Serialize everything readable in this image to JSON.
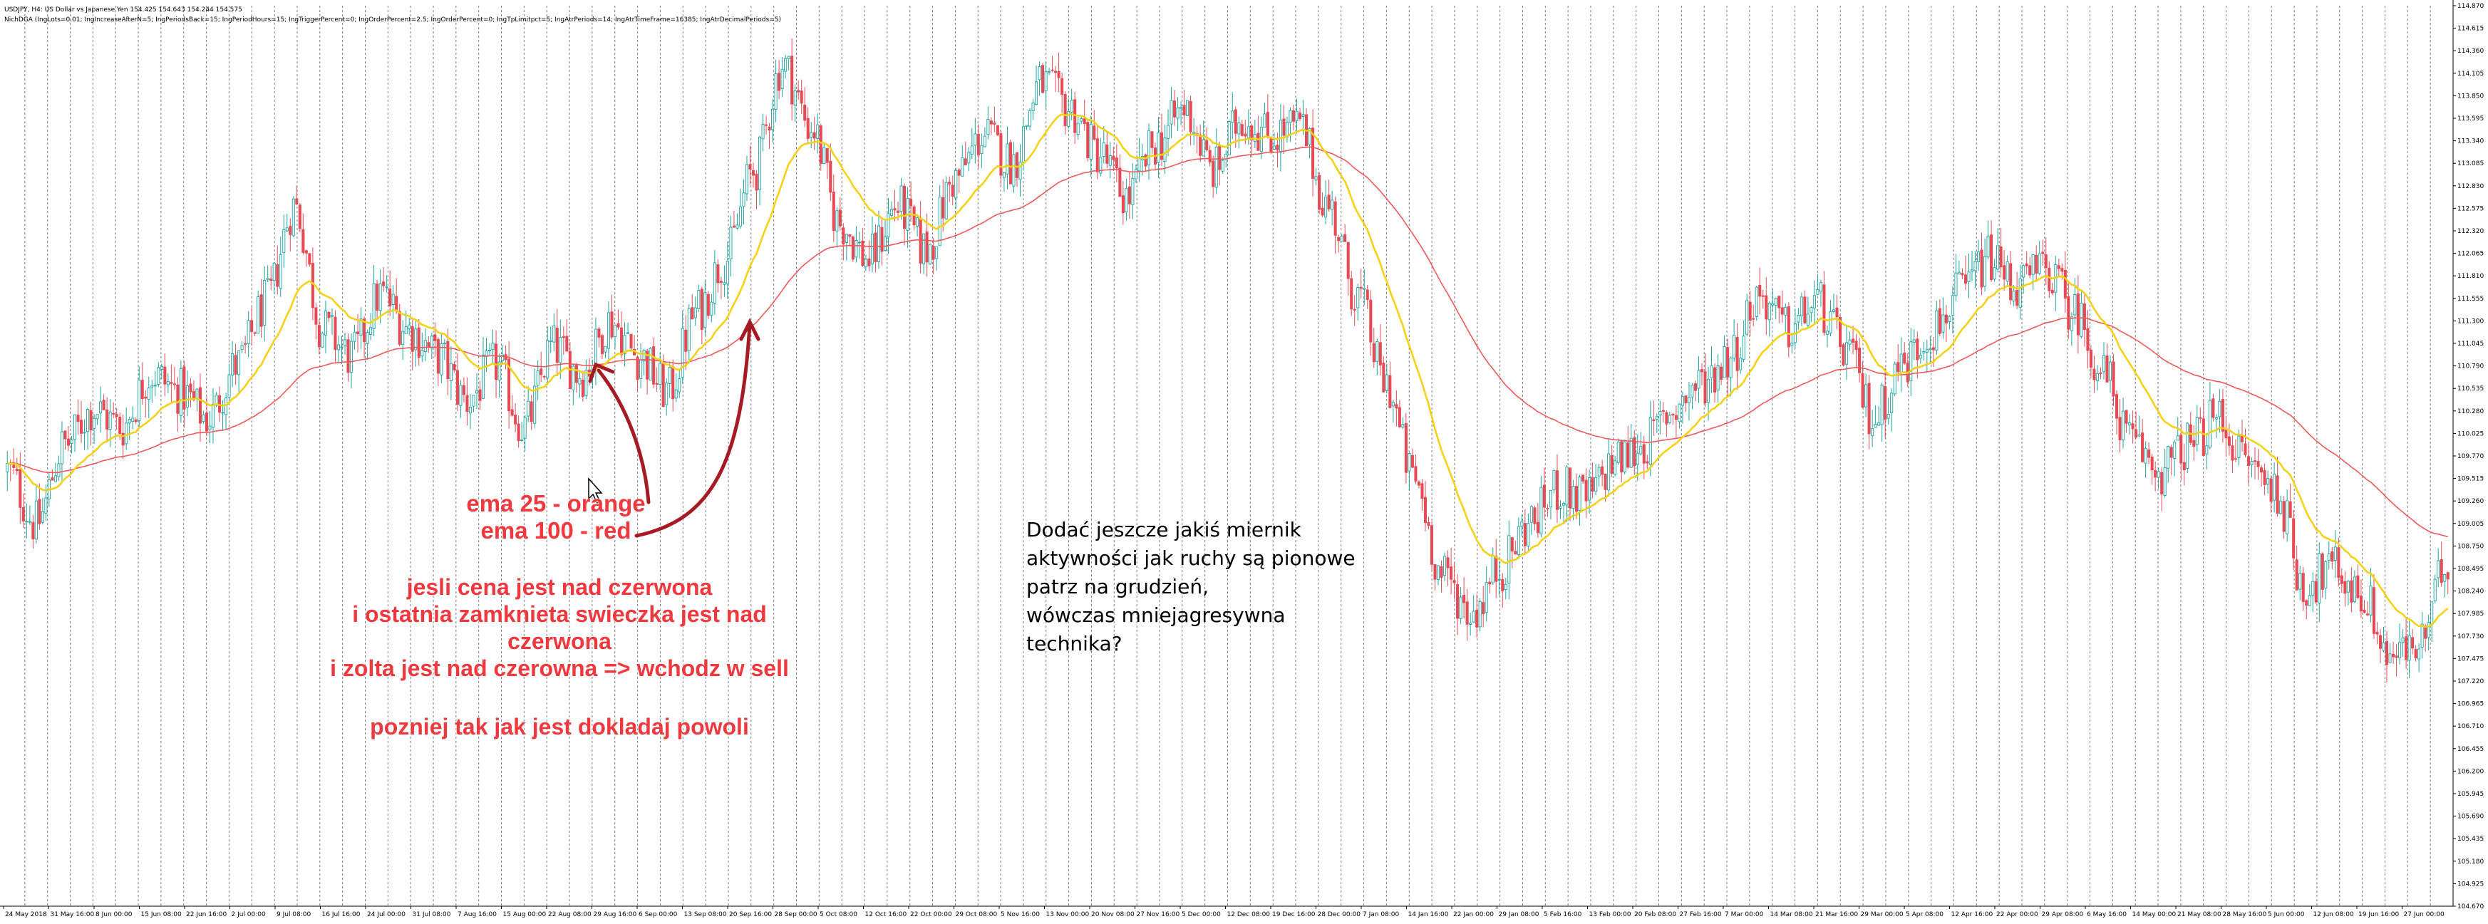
{
  "window": {
    "symbol_info": "USDJPY, H4: US Dollar vs Japanese Yen  154.425 154.643 154.244 154.575",
    "indicator_info": "NichDGA (IngLots=0.01; IngIncreaseAfterN=5; IngPeriodsBack=15; IngPeriodHours=15; IngTriggerPercent=0; IngOrderPercent=2.5; IngOrderPercent=0; IngTpLimitpct=5; IngAtrPeriods=14; IngAtrTimeFrame=16385; IngAtrDecimalPeriods=5)"
  },
  "annotations": {
    "ema_lines": [
      "ema 25 - orange",
      "ema 100 - red"
    ],
    "rule_lines": [
      "jesli cena jest nad czerwona",
      "i ostatnia zamknieta swieczka jest nad",
      "czerwona",
      "i zolta jest nad czerowna => wchodz w sell"
    ],
    "followup": "pozniej tak jak jest dokladaj powoli",
    "note_lines": [
      "Dodać jeszcze jakiś miernik",
      "aktywności jak ruchy są pionowe",
      "patrz na grudzień,",
      "wówczas mniejagresywna",
      "technika?"
    ]
  },
  "colors": {
    "bull": "#1aa5a5",
    "bear": "#e84a55",
    "ema25": "#f7d117",
    "ema100": "#ee5a5a",
    "grid": "#7a7a7a",
    "arrow": "#a61b23",
    "annotation": "#f0393f"
  },
  "chart_data": {
    "type": "candlestick",
    "symbol": "USDJPY",
    "timeframe": "H4",
    "price_axis_labels": [
      "114.870",
      "114.615",
      "114.360",
      "114.105",
      "113.850",
      "113.595",
      "113.340",
      "113.085",
      "112.830",
      "112.575",
      "112.320",
      "112.065",
      "111.810",
      "111.555",
      "111.300",
      "111.045",
      "110.790",
      "110.535",
      "110.280",
      "110.025",
      "109.770",
      "109.515",
      "109.260",
      "109.005",
      "108.750",
      "108.495",
      "108.240",
      "107.985",
      "107.730",
      "107.475",
      "107.220",
      "106.965",
      "106.710",
      "106.455",
      "106.200",
      "105.945",
      "105.690",
      "105.435",
      "105.180",
      "104.925",
      "104.670"
    ],
    "time_axis_labels": [
      "24 May 2018",
      "31 May 16:00",
      "8 Jun 00:00",
      "15 Jun 08:00",
      "22 Jun 16:00",
      "2 Jul 00:00",
      "9 Jul 08:00",
      "16 Jul 16:00",
      "24 Jul 00:00",
      "31 Jul 08:00",
      "7 Aug 16:00",
      "15 Aug 00:00",
      "22 Aug 08:00",
      "29 Aug 16:00",
      "6 Sep 00:00",
      "13 Sep 08:00",
      "20 Sep 16:00",
      "28 Sep 00:00",
      "5 Oct 08:00",
      "12 Oct 16:00",
      "22 Oct 00:00",
      "29 Oct 08:00",
      "5 Nov 16:00",
      "13 Nov 00:00",
      "20 Nov 08:00",
      "27 Nov 16:00",
      "5 Dec 00:00",
      "12 Dec 08:00",
      "19 Dec 16:00",
      "28 Dec 00:00",
      "7 Jan 08:00",
      "14 Jan 16:00",
      "22 Jan 00:00",
      "29 Jan 08:00",
      "5 Feb 16:00",
      "13 Feb 00:00",
      "20 Feb 08:00",
      "27 Feb 16:00",
      "7 Mar 00:00",
      "14 Mar 08:00",
      "21 Mar 16:00",
      "29 Mar 00:00",
      "5 Apr 08:00",
      "12 Apr 16:00",
      "22 Apr 00:00",
      "29 Apr 08:00",
      "6 May 16:00",
      "14 May 00:00",
      "21 May 08:00",
      "28 May 16:00",
      "5 Jun 00:00",
      "12 Jun 08:00",
      "19 Jun 16:00",
      "27 Jun 00:00"
    ],
    "ylim": [
      104.67,
      114.87
    ],
    "price_path": [
      [
        0,
        109.6
      ],
      [
        2,
        109.0
      ],
      [
        4,
        109.9
      ],
      [
        6,
        110.3
      ],
      [
        8,
        110.1
      ],
      [
        10,
        110.7
      ],
      [
        12,
        110.5
      ],
      [
        14,
        110.2
      ],
      [
        16,
        110.8
      ],
      [
        18,
        111.5
      ],
      [
        20,
        112.6
      ],
      [
        22,
        111.2
      ],
      [
        24,
        110.9
      ],
      [
        26,
        111.6
      ],
      [
        28,
        111.2
      ],
      [
        30,
        110.9
      ],
      [
        32,
        110.4
      ],
      [
        34,
        110.8
      ],
      [
        36,
        110.1
      ],
      [
        38,
        111.0
      ],
      [
        40,
        110.7
      ],
      [
        42,
        111.3
      ],
      [
        44,
        110.9
      ],
      [
        46,
        110.5
      ],
      [
        48,
        111.4
      ],
      [
        50,
        112.0
      ],
      [
        52,
        113.0
      ],
      [
        54,
        114.2
      ],
      [
        56,
        113.5
      ],
      [
        58,
        112.4
      ],
      [
        60,
        112.0
      ],
      [
        62,
        112.6
      ],
      [
        64,
        112.1
      ],
      [
        66,
        112.9
      ],
      [
        68,
        113.4
      ],
      [
        70,
        113.1
      ],
      [
        72,
        114.0
      ],
      [
        74,
        113.7
      ],
      [
        76,
        113.2
      ],
      [
        78,
        112.7
      ],
      [
        80,
        113.3
      ],
      [
        82,
        113.7
      ],
      [
        84,
        113.0
      ],
      [
        86,
        113.6
      ],
      [
        88,
        113.4
      ],
      [
        90,
        113.5
      ],
      [
        92,
        112.6
      ],
      [
        94,
        111.6
      ],
      [
        96,
        110.6
      ],
      [
        98,
        109.5
      ],
      [
        100,
        108.4
      ],
      [
        102,
        108.0
      ],
      [
        104,
        108.5
      ],
      [
        106,
        109.0
      ],
      [
        108,
        109.4
      ],
      [
        110,
        109.3
      ],
      [
        112,
        109.7
      ],
      [
        114,
        109.9
      ],
      [
        116,
        110.3
      ],
      [
        118,
        110.6
      ],
      [
        120,
        110.9
      ],
      [
        122,
        111.6
      ],
      [
        124,
        111.2
      ],
      [
        126,
        111.5
      ],
      [
        128,
        111.0
      ],
      [
        130,
        110.2
      ],
      [
        132,
        110.8
      ],
      [
        134,
        111.2
      ],
      [
        136,
        111.6
      ],
      [
        138,
        112.0
      ],
      [
        140,
        111.7
      ],
      [
        142,
        111.9
      ],
      [
        144,
        111.4
      ],
      [
        146,
        110.7
      ],
      [
        148,
        109.9
      ],
      [
        150,
        109.6
      ],
      [
        152,
        109.9
      ],
      [
        154,
        110.2
      ],
      [
        156,
        109.7
      ],
      [
        158,
        109.4
      ],
      [
        160,
        108.3
      ],
      [
        162,
        108.5
      ],
      [
        164,
        108.2
      ],
      [
        166,
        107.5
      ],
      [
        168,
        107.6
      ],
      [
        170,
        108.6
      ]
    ]
  }
}
